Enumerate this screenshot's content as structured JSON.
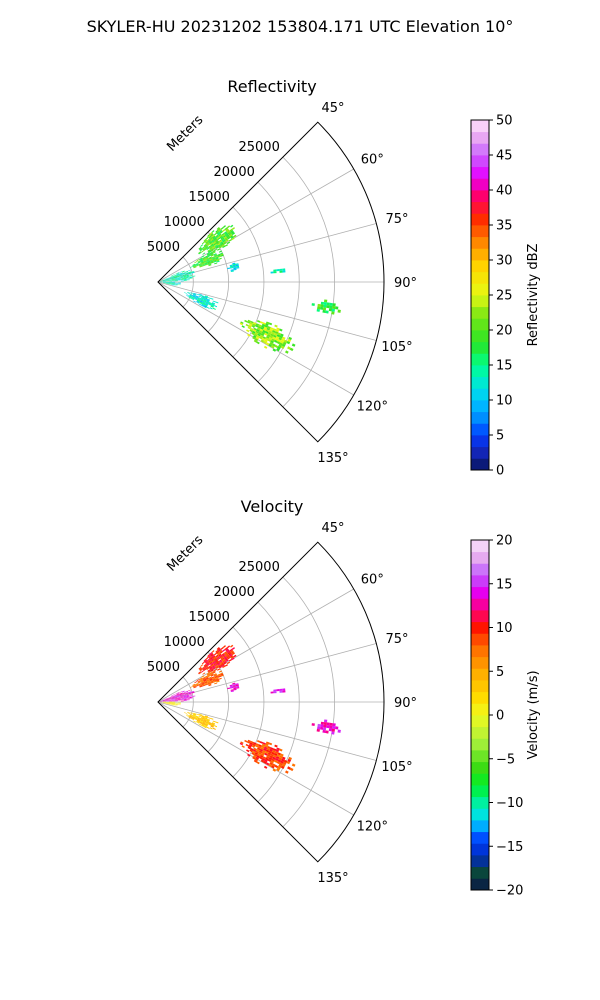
{
  "figure": {
    "suptitle": "SKYLER-HU  20231202  153804.171 UTC Elevation 10°"
  },
  "chart_data": [
    {
      "type": "polar-sector",
      "title": "Reflectivity",
      "range_label": "Meters",
      "azimuth_range_deg": [
        45,
        135
      ],
      "azimuth_ticks": [
        45,
        60,
        75,
        90,
        105,
        120,
        135
      ],
      "azimuth_tick_labels": [
        "45°",
        "60°",
        "75°",
        "90°",
        "105°",
        "120°",
        "135°"
      ],
      "range_max_m": 32000,
      "range_ticks": [
        5000,
        10000,
        15000,
        20000,
        25000
      ],
      "range_tick_labels": [
        "5000",
        "10000",
        "15000",
        "20000",
        "25000"
      ],
      "grid": true,
      "colorbar": {
        "label": "Reflectivity dBZ",
        "range": [
          0,
          50
        ],
        "ticks": [
          0,
          5,
          10,
          15,
          20,
          25,
          30,
          35,
          40,
          45,
          50
        ],
        "tick_labels": [
          "0",
          "5",
          "10",
          "15",
          "20",
          "25",
          "30",
          "35",
          "40",
          "45",
          "50"
        ]
      },
      "echo_regions": [
        {
          "az": [
            47,
            62
          ],
          "r": [
            7000,
            13000
          ],
          "value": 20
        },
        {
          "az": [
            60,
            72
          ],
          "r": [
            5000,
            10000
          ],
          "value": 19
        },
        {
          "az": [
            65,
            88
          ],
          "r": [
            0,
            5000
          ],
          "value": 14
        },
        {
          "az": [
            88,
            102
          ],
          "r": [
            0,
            3000
          ],
          "value": 13
        },
        {
          "az": [
            75,
            82
          ],
          "r": [
            10000,
            11500
          ],
          "value": 12
        },
        {
          "az": [
            83,
            86
          ],
          "r": [
            16000,
            18000
          ],
          "value": 15
        },
        {
          "az": [
            96,
            100
          ],
          "r": [
            22000,
            26000
          ],
          "value": 19
        },
        {
          "az": [
            106,
            118
          ],
          "r": [
            4000,
            9000
          ],
          "value": 12
        },
        {
          "az": [
            110,
            121
          ],
          "r": [
            13000,
            21000
          ],
          "value": 22
        }
      ]
    },
    {
      "type": "polar-sector",
      "title": "Velocity",
      "range_label": "Meters",
      "azimuth_range_deg": [
        45,
        135
      ],
      "azimuth_ticks": [
        45,
        60,
        75,
        90,
        105,
        120,
        135
      ],
      "azimuth_tick_labels": [
        "45°",
        "60°",
        "75°",
        "90°",
        "105°",
        "120°",
        "135°"
      ],
      "range_max_m": 32000,
      "range_ticks": [
        5000,
        10000,
        15000,
        20000,
        25000
      ],
      "range_tick_labels": [
        "5000",
        "10000",
        "15000",
        "20000",
        "25000"
      ],
      "grid": true,
      "colorbar": {
        "label": "Velocity (m/s)",
        "range": [
          -20,
          20
        ],
        "ticks": [
          -20,
          -15,
          -10,
          -5,
          0,
          5,
          10,
          15,
          20
        ],
        "tick_labels": [
          "−20",
          "−15",
          "−10",
          "−5",
          "0",
          "5",
          "10",
          "15",
          "20"
        ]
      },
      "echo_regions": [
        {
          "az": [
            47,
            62
          ],
          "r": [
            7000,
            13000
          ],
          "value": 10
        },
        {
          "az": [
            60,
            72
          ],
          "r": [
            5000,
            10000
          ],
          "value": 8
        },
        {
          "az": [
            65,
            88
          ],
          "r": [
            0,
            5000
          ],
          "value": 14
        },
        {
          "az": [
            88,
            102
          ],
          "r": [
            0,
            3000
          ],
          "value": 1
        },
        {
          "az": [
            75,
            82
          ],
          "r": [
            10000,
            11500
          ],
          "value": 14
        },
        {
          "az": [
            83,
            86
          ],
          "r": [
            16000,
            18000
          ],
          "value": 15
        },
        {
          "az": [
            96,
            100
          ],
          "r": [
            22000,
            26000
          ],
          "value": 14
        },
        {
          "az": [
            106,
            118
          ],
          "r": [
            4000,
            9000
          ],
          "value": 3
        },
        {
          "az": [
            110,
            121
          ],
          "r": [
            13000,
            21000
          ],
          "value": 9
        }
      ]
    }
  ]
}
